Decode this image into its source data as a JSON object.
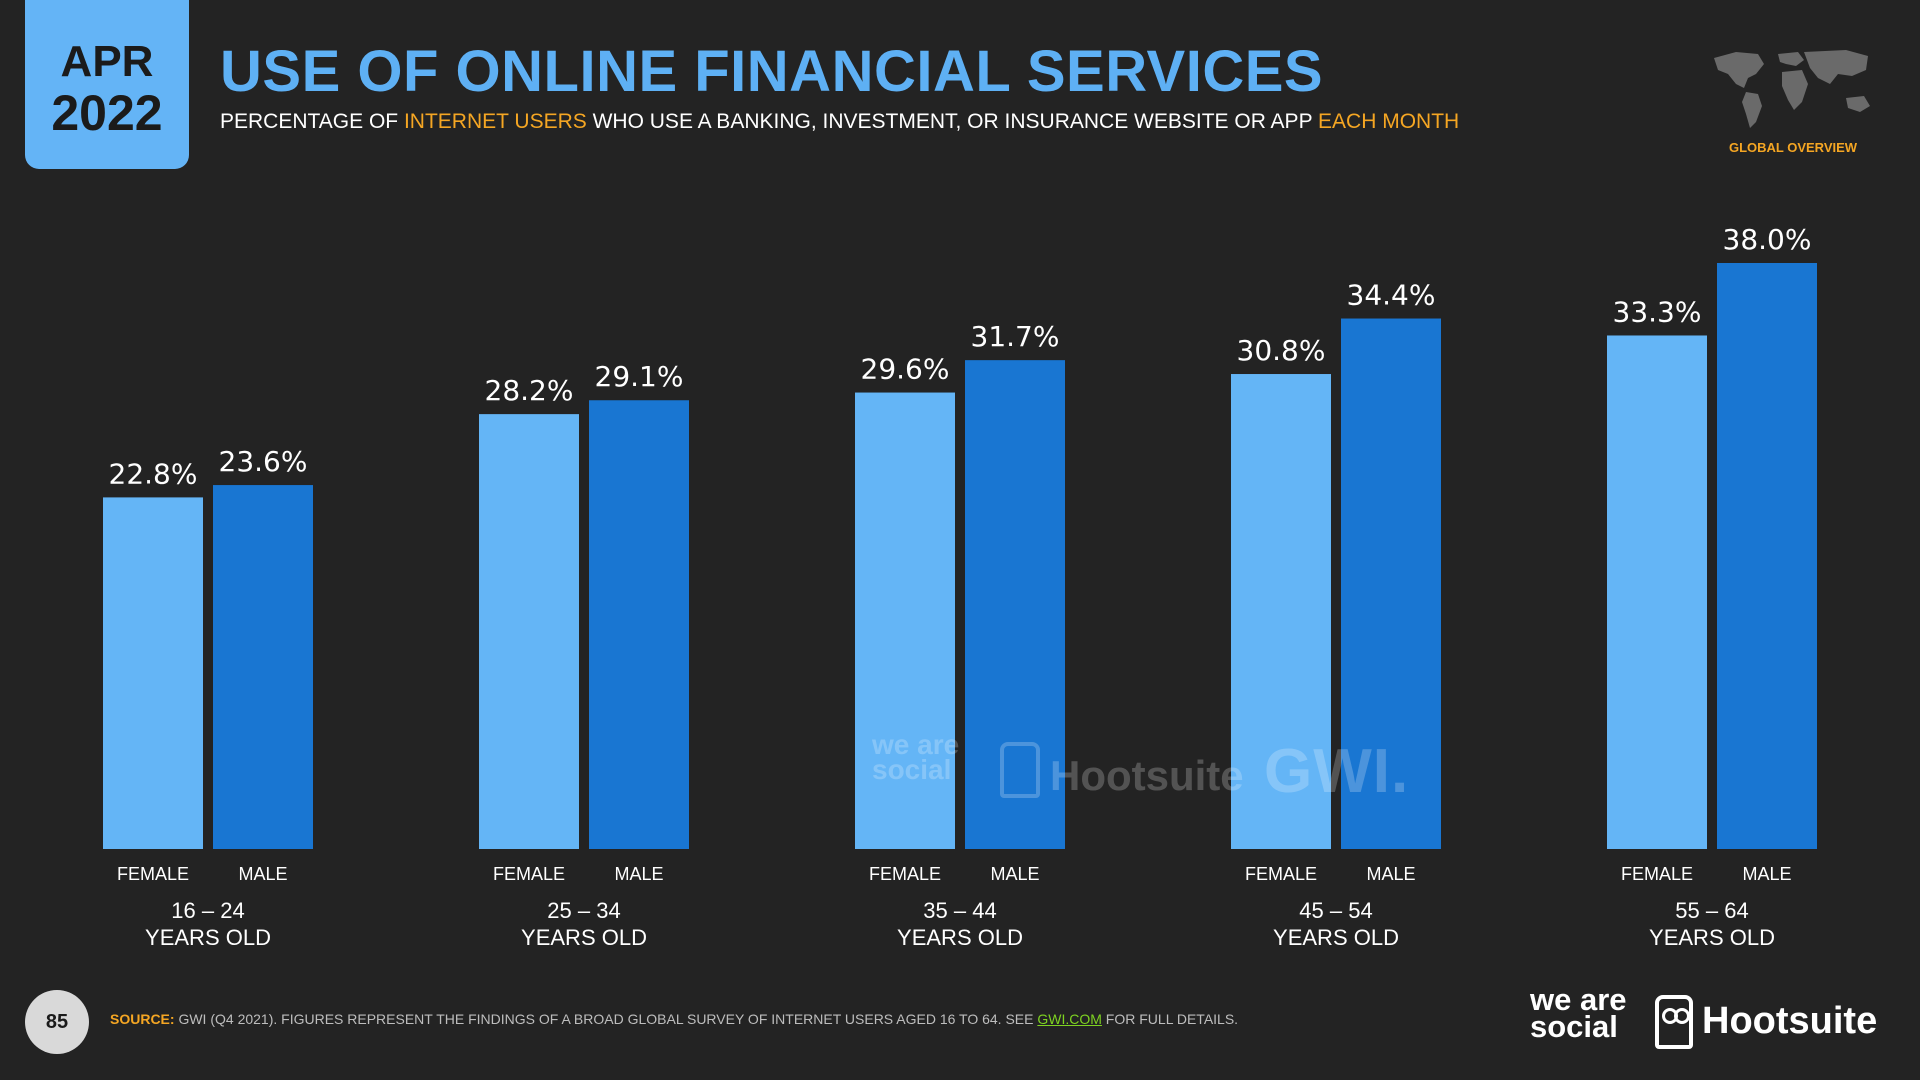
{
  "header": {
    "badge_month": "APR",
    "badge_year": "2022",
    "title": "USE OF ONLINE FINANCIAL SERVICES",
    "subtitle_part1": "PERCENTAGE OF ",
    "subtitle_hl1": "INTERNET USERS",
    "subtitle_part2": " WHO USE A BANKING, INVESTMENT, OR INSURANCE WEBSITE OR APP ",
    "subtitle_hl2": "EACH MONTH",
    "overview_label": "GLOBAL OVERVIEW",
    "map_icon": "world-map-icon"
  },
  "chart_data": {
    "type": "bar",
    "title": "USE OF ONLINE FINANCIAL SERVICES",
    "categories": [
      "16 – 24",
      "25 – 34",
      "35 – 44",
      "45 – 54",
      "55 – 64"
    ],
    "category_suffix": "YEARS OLD",
    "series": [
      {
        "name": "FEMALE",
        "color": "#64b5f6",
        "values": [
          22.8,
          28.2,
          29.6,
          30.8,
          33.3
        ]
      },
      {
        "name": "MALE",
        "color": "#1976d2",
        "values": [
          23.6,
          29.1,
          31.7,
          34.4,
          38.0
        ]
      }
    ],
    "value_format": "0.0%",
    "ylim": [
      0,
      38.0
    ],
    "grid": false,
    "legend": "none"
  },
  "watermark": {
    "we_are_social": "we are social",
    "hootsuite": "Hootsuite",
    "gwi": "GWI."
  },
  "footer": {
    "page_number": "85",
    "source_label": "SOURCE:",
    "source_text": " GWI (Q4 2021). FIGURES REPRESENT THE FINDINGS OF A BROAD GLOBAL SURVEY OF INTERNET USERS AGED 16 TO 64. SEE ",
    "source_link": "GWI.COM",
    "source_tail": " FOR FULL DETAILS.",
    "brand_we_are_social": "we are social",
    "brand_hootsuite": "Hootsuite"
  }
}
